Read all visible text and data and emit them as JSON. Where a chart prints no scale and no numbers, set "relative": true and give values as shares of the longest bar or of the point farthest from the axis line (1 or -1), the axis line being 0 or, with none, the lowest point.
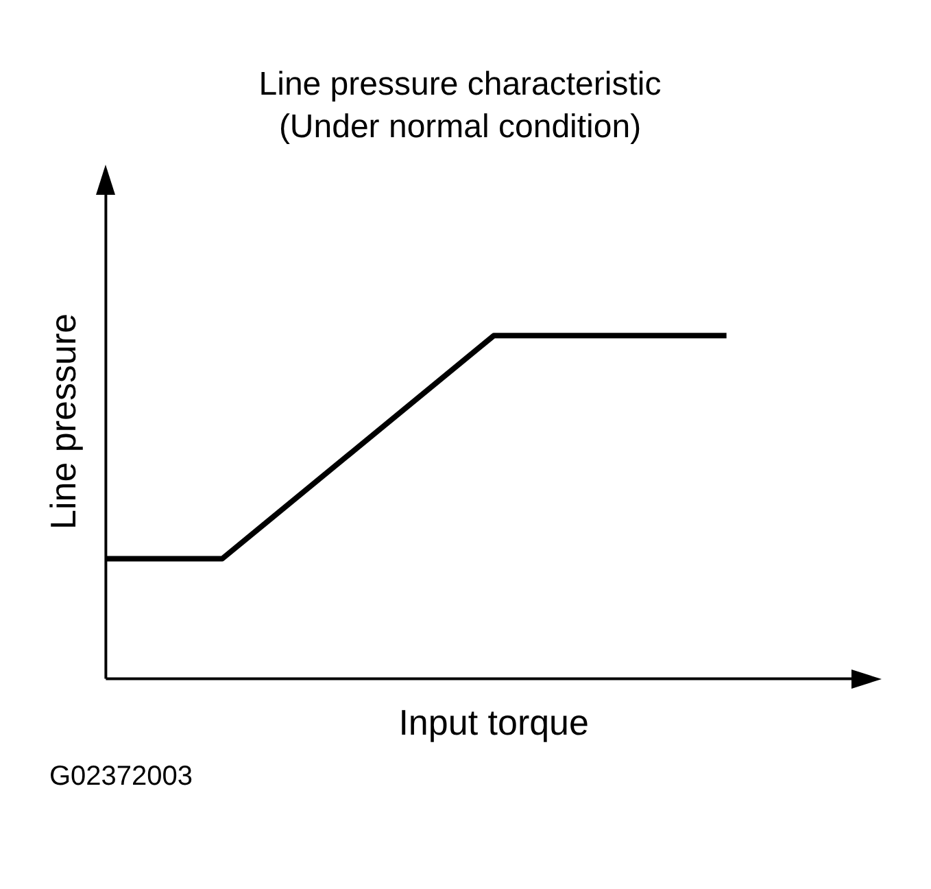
{
  "chart_data": {
    "type": "line",
    "title": "Line pressure characteristic",
    "subtitle": "(Under normal condition)",
    "xlabel": "Input torque",
    "ylabel": "Line pressure",
    "relative": true,
    "categories": [
      null,
      null,
      null,
      null,
      null,
      null,
      null,
      null,
      null,
      null,
      null,
      null,
      null,
      null,
      null,
      null,
      null,
      null,
      null,
      null,
      null
    ],
    "series": [
      {
        "color": "#000000",
        "values": [
          0.35,
          null,
          null,
          0.35,
          null,
          null,
          null,
          null,
          null,
          null,
          1,
          null,
          null,
          null,
          null,
          null,
          1,
          null,
          null,
          null,
          null
        ]
      }
    ],
    "annotations": [
      "G02372003"
    ],
    "legend": false,
    "grid": false,
    "marker": "none",
    "line_style": "solid"
  }
}
